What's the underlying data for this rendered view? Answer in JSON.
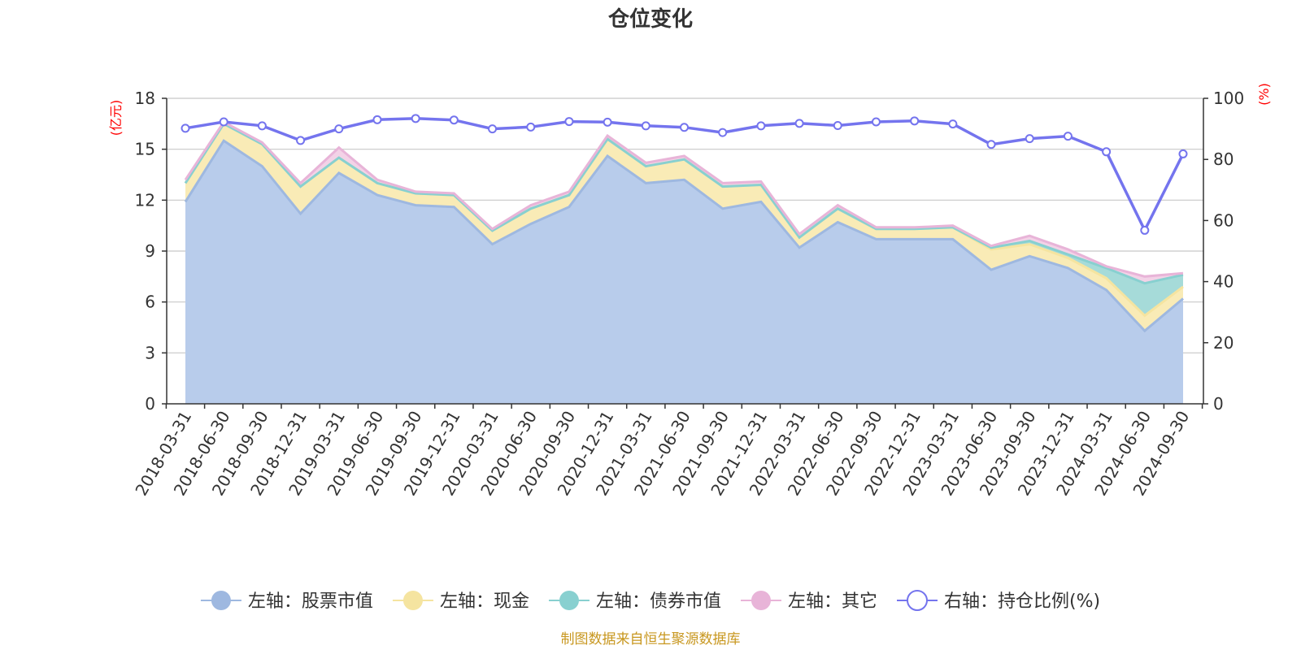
{
  "chart_data": {
    "type": "area",
    "title": "仓位变化",
    "left_axis_unit": "(亿元)",
    "right_axis_unit": "(%)",
    "ylim_left": [
      0,
      18
    ],
    "yticks_left": [
      "0",
      "3",
      "6",
      "9",
      "12",
      "15",
      "18"
    ],
    "ylim_right": [
      0,
      100
    ],
    "yticks_right": [
      "0",
      "20",
      "40",
      "60",
      "80",
      "100"
    ],
    "grid": true,
    "legend_position": "bottom",
    "x": [
      "2018-03-31",
      "2018-06-30",
      "2018-09-30",
      "2018-12-31",
      "2019-03-31",
      "2019-06-30",
      "2019-09-30",
      "2019-12-31",
      "2020-03-31",
      "2020-06-30",
      "2020-09-30",
      "2020-12-31",
      "2021-03-31",
      "2021-06-30",
      "2021-09-30",
      "2021-12-31",
      "2022-03-31",
      "2022-06-30",
      "2022-09-30",
      "2022-12-31",
      "2023-03-31",
      "2023-06-30",
      "2023-09-30",
      "2023-12-31",
      "2024-03-31",
      "2024-06-30",
      "2024-09-30"
    ],
    "series": [
      {
        "name": "左轴：股票市值",
        "axis": "left",
        "stacked": true,
        "color": "#9eb8e0",
        "fill": "#b8cceb",
        "values": [
          11.9,
          15.5,
          14.0,
          11.2,
          13.6,
          12.3,
          11.7,
          11.6,
          9.4,
          10.6,
          11.6,
          14.6,
          13.0,
          13.2,
          11.5,
          11.9,
          9.2,
          10.7,
          9.7,
          9.7,
          9.7,
          7.9,
          8.7,
          8.0,
          6.7,
          4.3,
          6.2
        ]
      },
      {
        "name": "左轴：现金",
        "axis": "left",
        "stacked": true,
        "color": "#f5e4a0",
        "fill": "#f9ebb6",
        "values": [
          1.1,
          1.0,
          1.3,
          1.6,
          0.9,
          0.7,
          0.7,
          0.7,
          0.8,
          0.9,
          0.7,
          1.0,
          1.0,
          1.2,
          1.3,
          1.0,
          0.6,
          0.8,
          0.6,
          0.6,
          0.7,
          1.2,
          0.7,
          0.6,
          0.7,
          0.9,
          0.7
        ]
      },
      {
        "name": "左轴：债券市值",
        "axis": "left",
        "stacked": true,
        "color": "#88d0d0",
        "fill": "#a6dbd9",
        "values": [
          0,
          0,
          0,
          0,
          0,
          0,
          0,
          0,
          0,
          0,
          0,
          0,
          0,
          0,
          0,
          0,
          0,
          0,
          0,
          0,
          0,
          0.1,
          0.2,
          0.2,
          0.6,
          1.9,
          0.7
        ]
      },
      {
        "name": "左轴：其它",
        "axis": "left",
        "stacked": true,
        "color": "#e8b4d8",
        "fill": "#f3d2e7",
        "values": [
          0.2,
          0.1,
          0.1,
          0.2,
          0.6,
          0.2,
          0.1,
          0.1,
          0.1,
          0.2,
          0.2,
          0.2,
          0.2,
          0.2,
          0.2,
          0.2,
          0.2,
          0.2,
          0.1,
          0.1,
          0.1,
          0.1,
          0.3,
          0.3,
          0.1,
          0.4,
          0.1
        ]
      },
      {
        "name": "右轴：持仓比例(%)",
        "axis": "right",
        "type": "line",
        "color": "#7474ee",
        "values": [
          90.2,
          92.3,
          91.0,
          86.2,
          90.0,
          93.0,
          93.4,
          92.9,
          90.0,
          90.6,
          92.4,
          92.2,
          91.0,
          90.5,
          88.8,
          91.0,
          91.8,
          91.1,
          92.3,
          92.6,
          91.6,
          84.9,
          86.8,
          87.6,
          82.5,
          56.8,
          81.8
        ]
      }
    ]
  },
  "footer": "制图数据来自恒生聚源数据库"
}
